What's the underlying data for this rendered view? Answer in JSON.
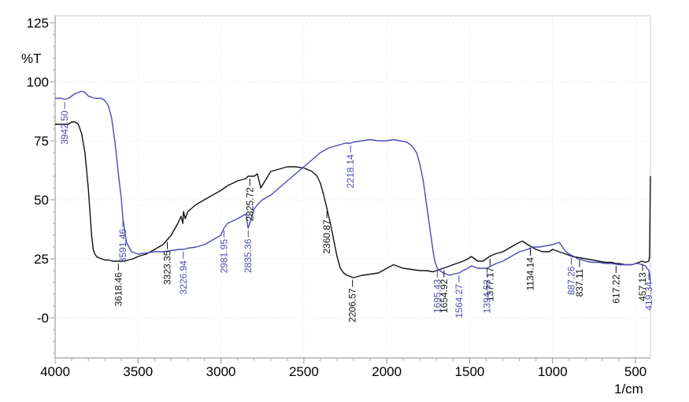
{
  "chart_data": {
    "type": "line",
    "title": "",
    "xlabel": "1/cm",
    "ylabel": "%T",
    "x_reversed": true,
    "xlim": [
      4000,
      410
    ],
    "ylim": [
      -17,
      128
    ],
    "xticks": [
      "4000",
      "3500",
      "3000",
      "2500",
      "2000",
      "1500",
      "1000",
      "500"
    ],
    "yticks": [
      "125",
      "100",
      "75",
      "50",
      "25",
      "-0"
    ],
    "grid": false,
    "legend": "none",
    "series": [
      {
        "color": "#111111",
        "x": [
          4000,
          3980,
          3950,
          3920,
          3900,
          3880,
          3860,
          3840,
          3820,
          3800,
          3780,
          3770,
          3760,
          3750,
          3740,
          3720,
          3700,
          3680,
          3650,
          3618,
          3590,
          3560,
          3530,
          3500,
          3450,
          3400,
          3350,
          3300,
          3260,
          3240,
          3230,
          3226,
          3215,
          3200,
          3150,
          3100,
          3050,
          3000,
          2980,
          2960,
          2900,
          2850,
          2836,
          2800,
          2780,
          2760,
          2700,
          2650,
          2600,
          2550,
          2500,
          2450,
          2420,
          2400,
          2380,
          2360,
          2340,
          2320,
          2300,
          2280,
          2260,
          2240,
          2220,
          2200,
          2150,
          2100,
          2050,
          2000,
          1960,
          1940,
          1900,
          1850,
          1800,
          1760,
          1720,
          1700,
          1660,
          1620,
          1580,
          1540,
          1510,
          1490,
          1470,
          1450,
          1420,
          1400,
          1380,
          1350,
          1300,
          1250,
          1200,
          1180,
          1150,
          1100,
          1060,
          1020,
          1000,
          960,
          920,
          880,
          840,
          800,
          760,
          720,
          680,
          640,
          617,
          600,
          560,
          520,
          500,
          480,
          460,
          440,
          420,
          415,
          410
        ],
        "y": [
          82,
          82,
          82,
          82,
          83,
          83,
          82,
          78,
          70,
          55,
          35,
          29,
          27,
          26,
          25.5,
          25,
          24.5,
          24.5,
          24,
          24,
          24,
          24.5,
          25,
          26,
          27,
          29,
          31,
          35,
          40,
          43,
          40,
          45,
          42,
          45,
          48,
          50,
          52,
          54,
          55,
          56,
          58,
          59,
          60,
          60,
          61,
          55,
          62,
          63,
          64,
          64,
          63.5,
          62,
          60,
          57,
          52,
          46,
          40,
          33,
          26,
          21,
          19,
          18,
          17.5,
          17,
          18,
          18.5,
          19,
          21,
          22.5,
          22,
          21,
          20.5,
          20,
          20,
          19.5,
          20,
          21,
          22,
          23,
          24,
          25,
          26,
          25,
          24,
          24,
          25,
          26,
          27,
          28,
          30,
          32,
          32.5,
          31,
          29,
          28,
          28,
          29,
          28,
          27,
          26,
          25.5,
          25,
          24.5,
          24,
          23.5,
          23.5,
          23,
          23,
          22.5,
          22.5,
          23,
          23.5,
          24,
          23.5,
          24,
          26,
          60
        ],
        "labels": [
          {
            "x": 3618.46,
            "text": "3618.46"
          },
          {
            "x": 3323.35,
            "text": "3323.35"
          },
          {
            "x": 2825.72,
            "text": "2825.72"
          },
          {
            "x": 2360.87,
            "text": "2360.87"
          },
          {
            "x": 2206.57,
            "text": "2206.57"
          },
          {
            "x": 1654.92,
            "text": "1654.92"
          },
          {
            "x": 1377.17,
            "text": "1377.17"
          },
          {
            "x": 1134.14,
            "text": "1134.14"
          },
          {
            "x": 837.11,
            "text": "837.11"
          },
          {
            "x": 617.22,
            "text": "617.22"
          },
          {
            "x": 457.13,
            "text": "457.13"
          }
        ]
      },
      {
        "color": "#4a4ab4",
        "x": [
          4000,
          3980,
          3960,
          3942.5,
          3920,
          3900,
          3880,
          3860,
          3840,
          3820,
          3800,
          3780,
          3760,
          3740,
          3720,
          3700,
          3680,
          3660,
          3640,
          3620,
          3600,
          3591,
          3570,
          3540,
          3500,
          3450,
          3400,
          3350,
          3300,
          3250,
          3226,
          3200,
          3150,
          3100,
          3050,
          3000,
          2982,
          2960,
          2900,
          2850,
          2836,
          2800,
          2780,
          2750,
          2700,
          2650,
          2600,
          2550,
          2500,
          2450,
          2400,
          2350,
          2300,
          2250,
          2218,
          2200,
          2150,
          2100,
          2050,
          2000,
          1960,
          1920,
          1880,
          1850,
          1820,
          1800,
          1780,
          1760,
          1740,
          1720,
          1710,
          1700,
          1695,
          1680,
          1660,
          1640,
          1620,
          1600,
          1564,
          1540,
          1510,
          1490,
          1470,
          1450,
          1420,
          1394,
          1370,
          1340,
          1300,
          1250,
          1200,
          1150,
          1120,
          1080,
          1040,
          1000,
          980,
          960,
          940,
          920,
          900,
          887,
          870,
          850,
          820,
          800,
          760,
          720,
          680,
          640,
          600,
          560,
          520,
          500,
          480,
          460,
          440,
          430,
          419,
          414,
          410
        ],
        "y": [
          93,
          93,
          93,
          92.5,
          93,
          94,
          95,
          95.5,
          96,
          95.5,
          94,
          93.5,
          93,
          93,
          93,
          92,
          90,
          85,
          75,
          62,
          50,
          42,
          32,
          28,
          27,
          27.5,
          28,
          28,
          28.5,
          29,
          29,
          29.5,
          30,
          31,
          33,
          35,
          38,
          40,
          42,
          44,
          38,
          46,
          48,
          50,
          52,
          55,
          58,
          61,
          64,
          67,
          70,
          72,
          73,
          74,
          74,
          74.5,
          75,
          75.5,
          75,
          75,
          75.5,
          75,
          74.5,
          73,
          70,
          65,
          58,
          48,
          38,
          28,
          24,
          22,
          21,
          20,
          19,
          18.5,
          18,
          18.5,
          19,
          20,
          21,
          22,
          21.5,
          21,
          21,
          21,
          22,
          23,
          24,
          26,
          28,
          29,
          30,
          30,
          30.5,
          31,
          31.5,
          32,
          30,
          28,
          27,
          26.5,
          26,
          25,
          24.5,
          24,
          23.5,
          23.5,
          23,
          23,
          22.5,
          22.5,
          22.5,
          23,
          23,
          22.5,
          22,
          21,
          20,
          18,
          15
        ],
        "labels": [
          {
            "x": 3942.5,
            "text": "3942.50"
          },
          {
            "x": 3591.46,
            "text": "3591.46"
          },
          {
            "x": 3226.94,
            "text": "3226.94"
          },
          {
            "x": 2981.95,
            "text": "2981.95"
          },
          {
            "x": 2835.36,
            "text": "2835.36"
          },
          {
            "x": 2218.14,
            "text": "2218.14"
          },
          {
            "x": 1695.43,
            "text": "1695.43"
          },
          {
            "x": 1564.27,
            "text": "1564.27"
          },
          {
            "x": 1394.53,
            "text": "1394.53"
          },
          {
            "x": 887.26,
            "text": "887.26"
          },
          {
            "x": 419.34,
            "text": "419.34"
          }
        ]
      }
    ]
  }
}
